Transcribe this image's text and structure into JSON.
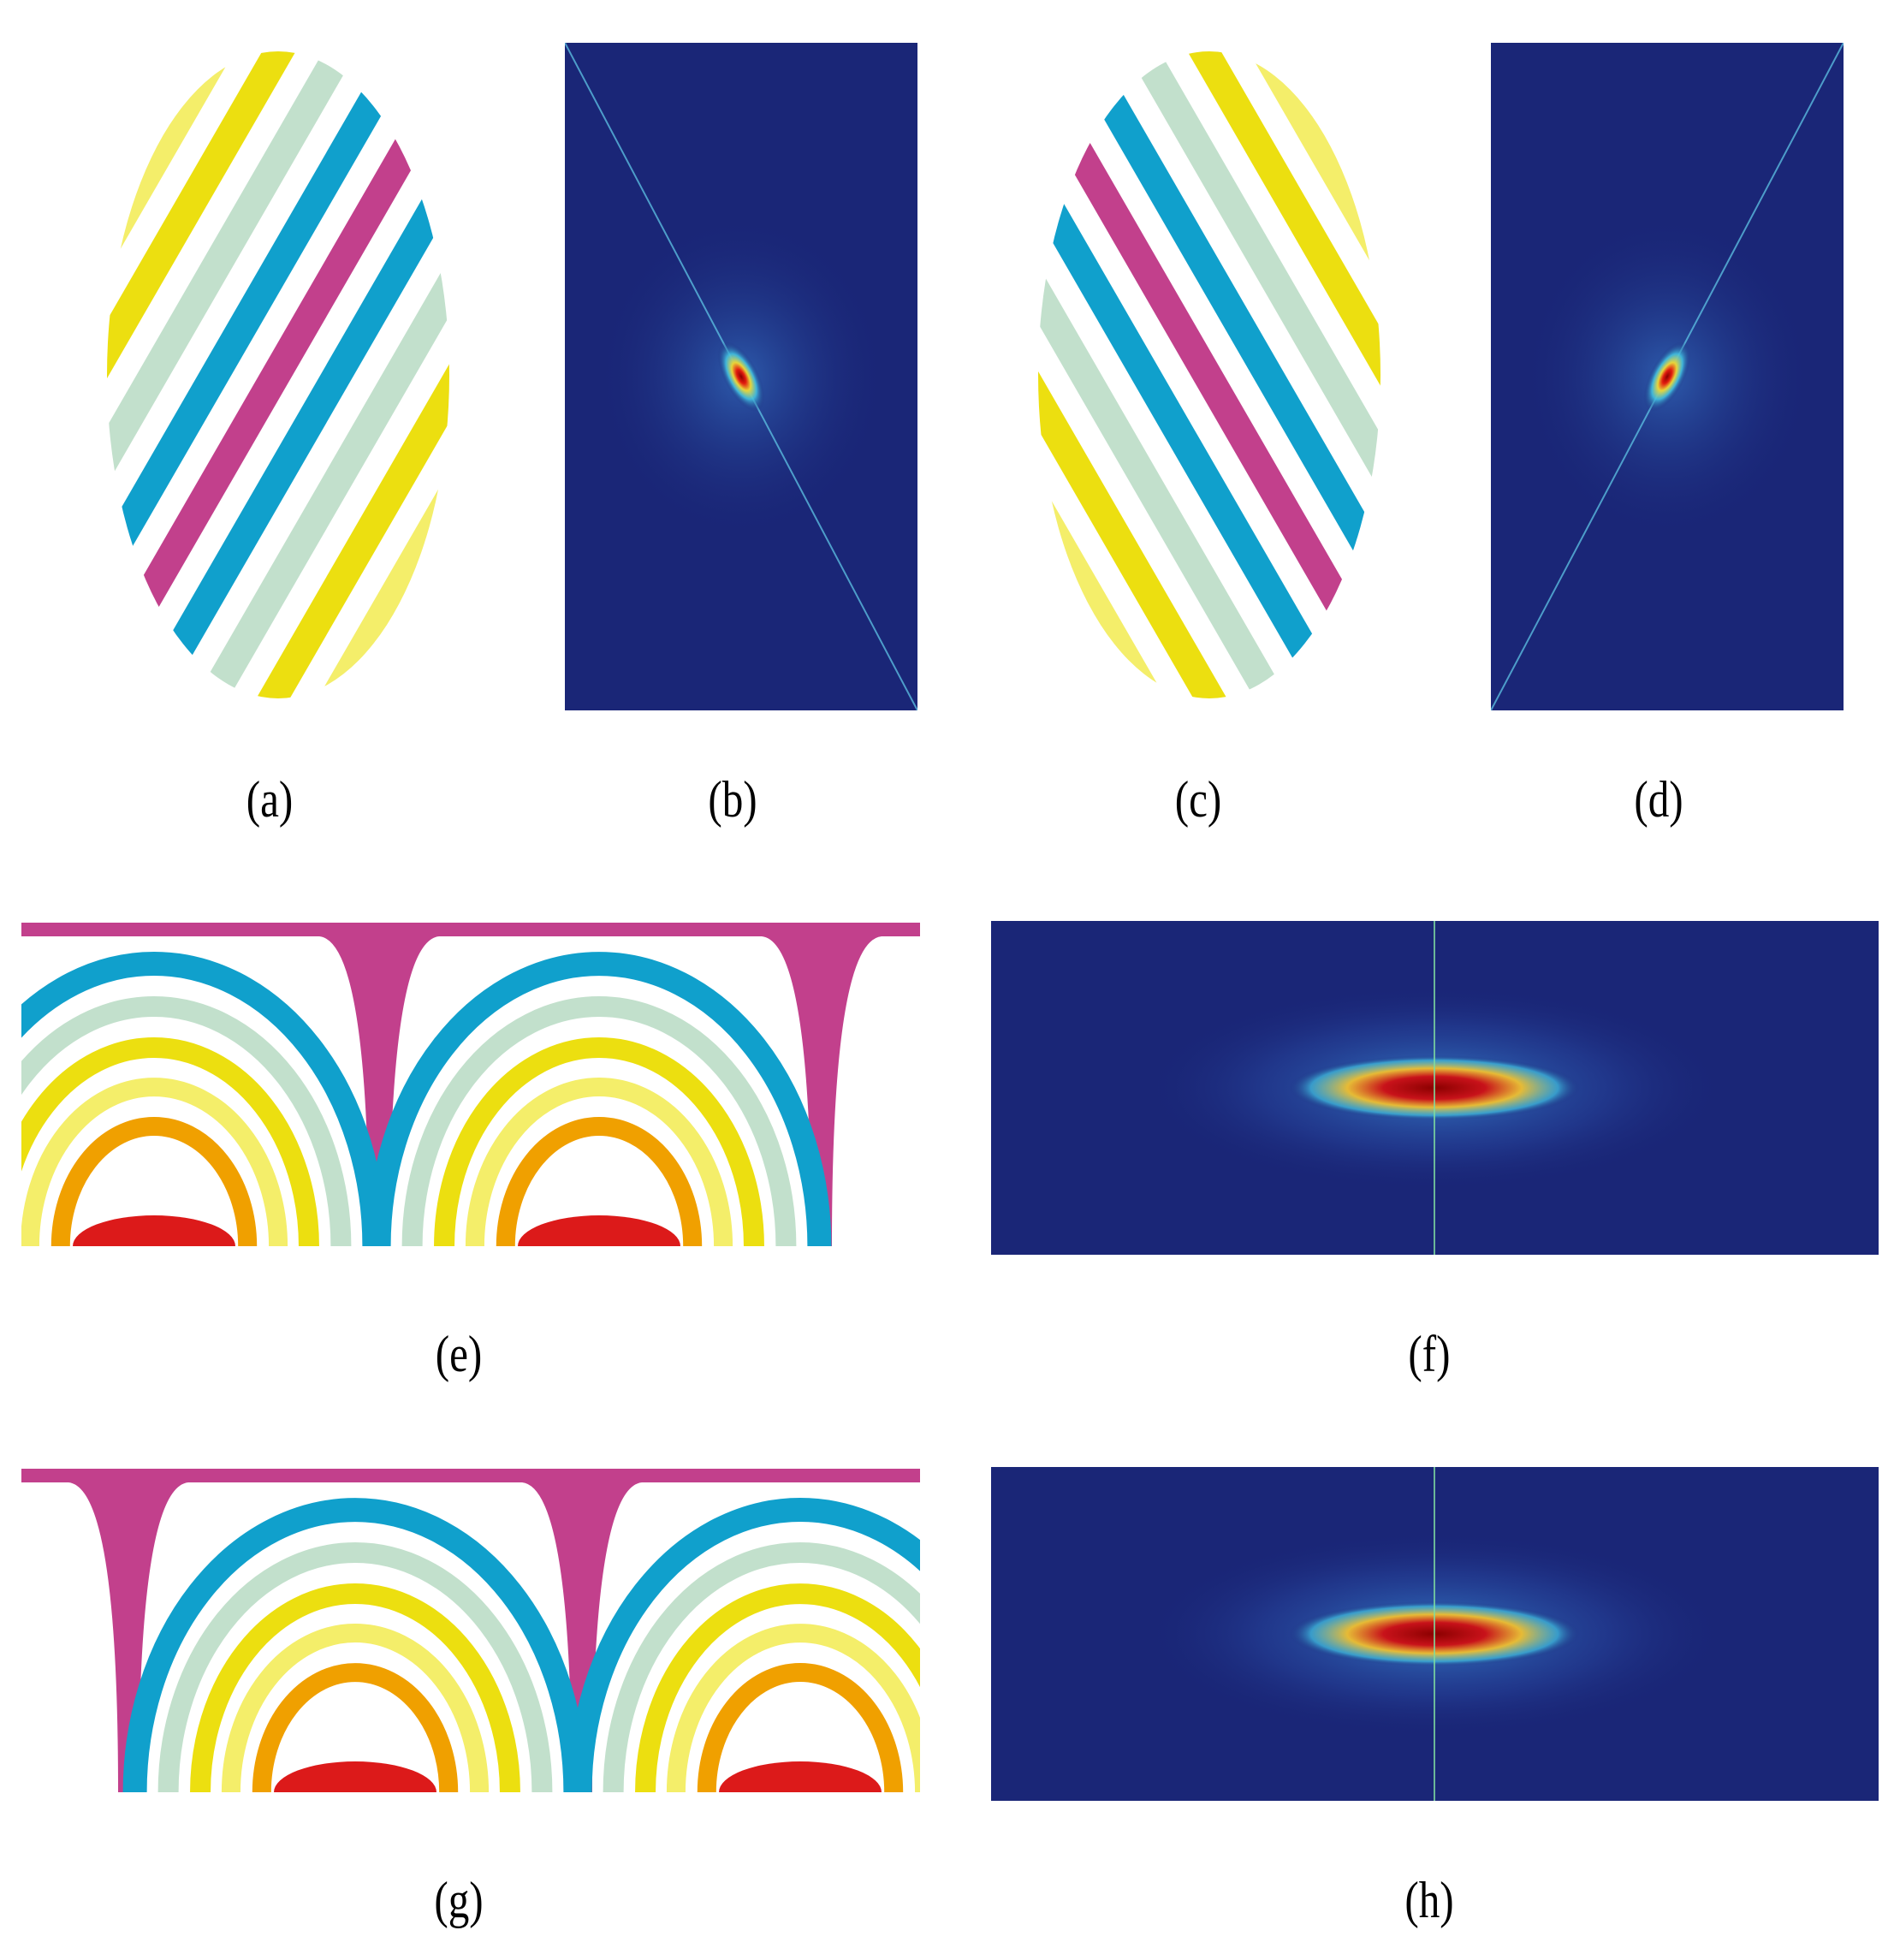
{
  "figure": {
    "panels": [
      {
        "id": "a",
        "caption": "(a)",
        "kind": "stripe-ellipse",
        "tilt": "right"
      },
      {
        "id": "b",
        "caption": "(b)",
        "kind": "spectrum",
        "diagonal": "tl-br"
      },
      {
        "id": "c",
        "caption": "(c)",
        "kind": "stripe-ellipse",
        "tilt": "left"
      },
      {
        "id": "d",
        "caption": "(d)",
        "kind": "spectrum",
        "diagonal": "bl-tr"
      },
      {
        "id": "e",
        "caption": "(e)",
        "kind": "arch-pattern"
      },
      {
        "id": "f",
        "caption": "(f)",
        "kind": "spectrum-wide"
      },
      {
        "id": "g",
        "caption": "(g)",
        "kind": "arch-pattern"
      },
      {
        "id": "h",
        "caption": "(h)",
        "kind": "spectrum-wide"
      }
    ],
    "palette": {
      "red": "#dc1a1a",
      "orange": "#f0a000",
      "light_yellow": "#f4ee6a",
      "yellow": "#ecdf10",
      "mint": "#c2e0cc",
      "cyan": "#10a0cc",
      "magenta": "#c2408c",
      "spectrum_bg": "#1a2677",
      "spectrum_core": "#8b0000"
    }
  }
}
